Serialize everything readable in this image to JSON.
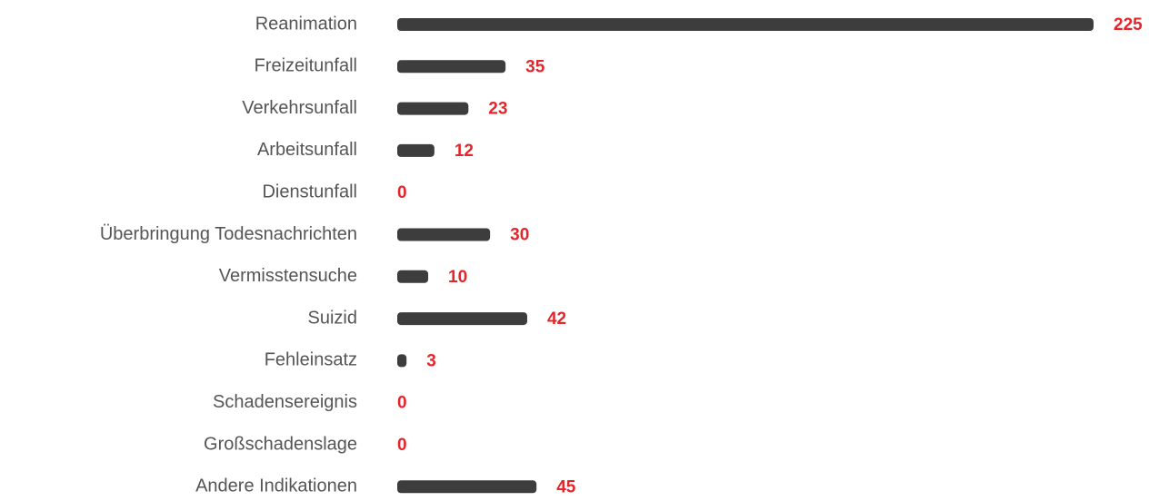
{
  "chart_data": {
    "type": "bar",
    "orientation": "horizontal",
    "categories": [
      "Reanimation",
      "Freizeitunfall",
      "Verkehrsunfall",
      "Arbeitsunfall",
      "Dienstunfall",
      "Überbringung Todesnachrichten",
      "Vermisstensuche",
      "Suizid",
      "Fehleinsatz",
      "Schadensereignis",
      "Großschadenslage",
      "Andere Indikationen"
    ],
    "values": [
      225,
      35,
      23,
      12,
      0,
      30,
      10,
      42,
      3,
      0,
      0,
      45
    ],
    "color": "#3d3d3d",
    "label_color": "#e3262b"
  }
}
